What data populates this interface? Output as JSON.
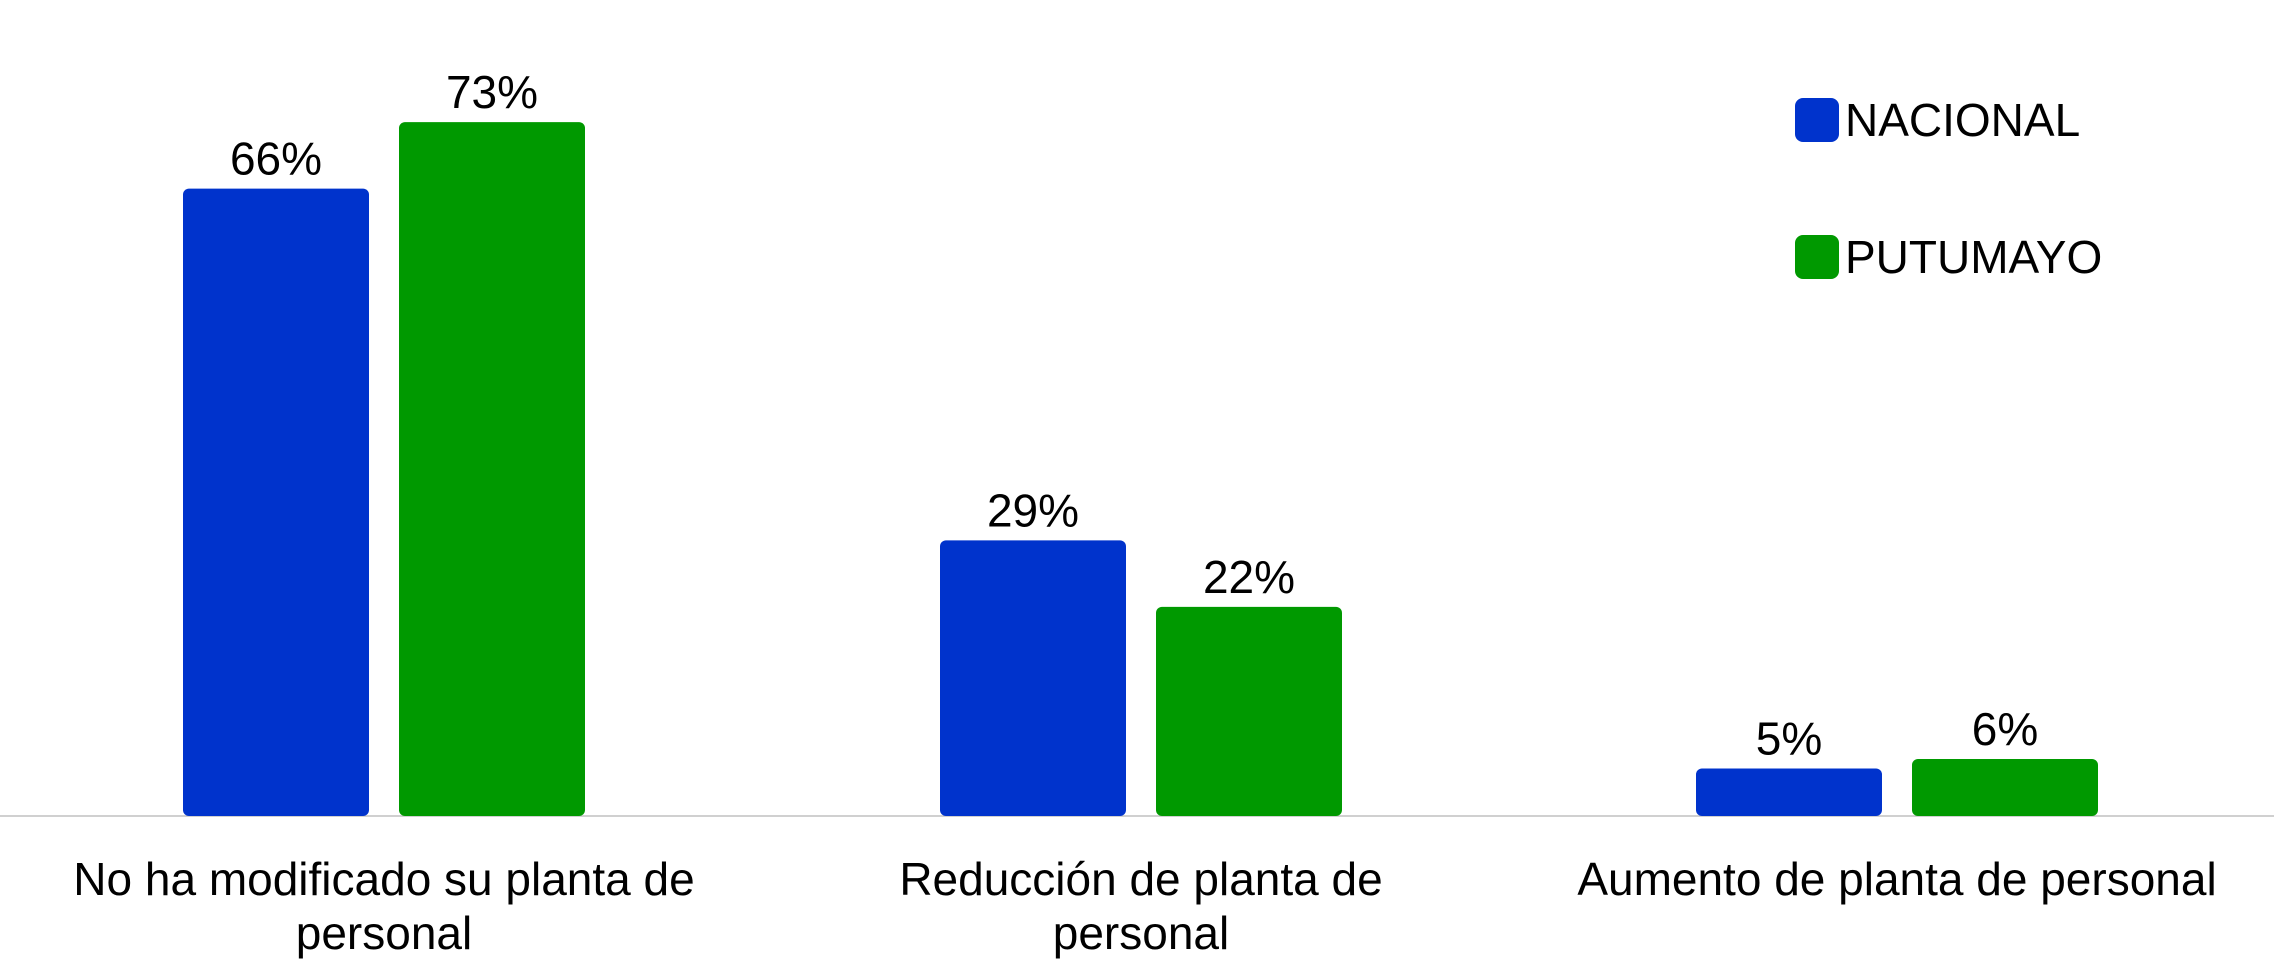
{
  "chart_data": {
    "type": "bar",
    "categories": [
      "No ha modificado su planta de personal",
      "Reducción de planta de personal",
      "Aumento de planta de personal"
    ],
    "series": [
      {
        "name": "NACIONAL",
        "color": "#0033cc",
        "values": [
          66,
          29,
          5
        ],
        "value_labels": [
          "66%",
          "29%",
          "5%"
        ]
      },
      {
        "name": "PUTUMAYO",
        "color": "#009900",
        "values": [
          73,
          22,
          6
        ],
        "value_labels": [
          "73%",
          "22%",
          "6%"
        ]
      }
    ],
    "ylim": [
      0,
      85
    ]
  }
}
